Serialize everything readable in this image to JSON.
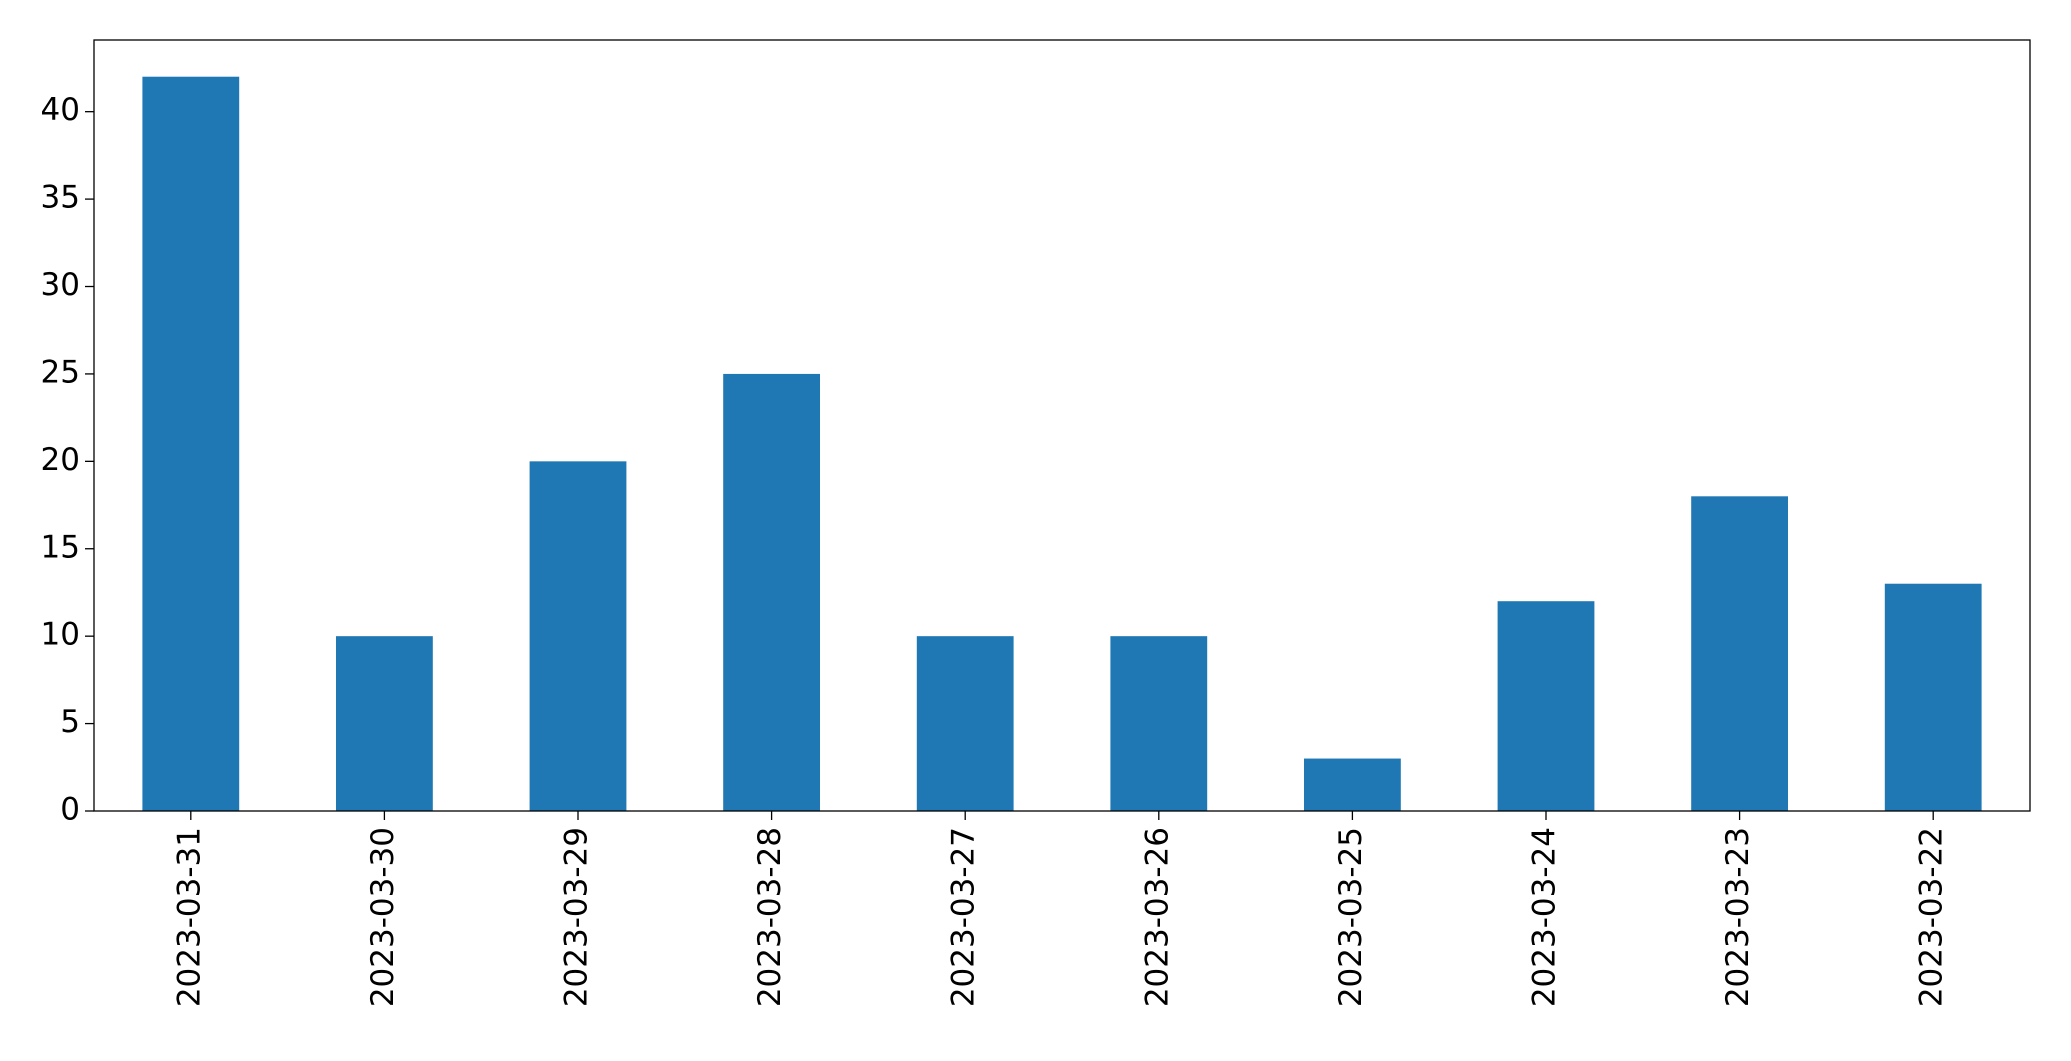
{
  "chart_data": {
    "type": "bar",
    "categories": [
      "2023-03-31",
      "2023-03-30",
      "2023-03-29",
      "2023-03-28",
      "2023-03-27",
      "2023-03-26",
      "2023-03-25",
      "2023-03-24",
      "2023-03-23",
      "2023-03-22"
    ],
    "values": [
      42,
      10,
      20,
      25,
      10,
      10,
      3,
      12,
      18,
      13
    ],
    "color": "#1f77b4",
    "ylim": [
      0,
      44.1
    ],
    "yticks": [
      0,
      5,
      10,
      15,
      20,
      25,
      30,
      35,
      40
    ],
    "grid": false
  }
}
